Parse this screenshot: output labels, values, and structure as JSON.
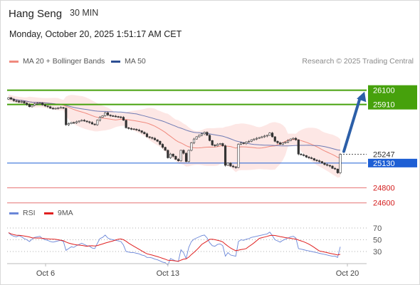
{
  "header": {
    "title": "Hang Seng",
    "interval": "30 MIN",
    "datetime": "Monday, October 20, 2025 1:51:17 AM CET"
  },
  "legend": {
    "ma20_label": "MA 20 + Bollinger Bands",
    "ma50_label": "MA 50",
    "credit": "Research © 2025 Trading Central",
    "rsi_label": "RSI",
    "rsi_ma_label": "9MA"
  },
  "colors": {
    "ma20": "#f08a7e",
    "ma50": "#4a5fa8",
    "bollinger_fill": "#fde3e0",
    "pivot_green": "#46a10c",
    "pivot_blue": "#1e5fd4",
    "support_red": "#e05050",
    "rsi_line": "#6a86d8",
    "rsi_ma": "#e02020",
    "arrow": "#2c5fa8"
  },
  "chart_data": {
    "type": "candlestick",
    "x_tick_labels": [
      "Oct 6",
      "Oct 13",
      "Oct 20"
    ],
    "y_range": [
      24550,
      26400
    ],
    "price_levels": [
      {
        "value": 26100,
        "label": "26100",
        "style": "resistance"
      },
      {
        "value": 25910,
        "label": "25910",
        "style": "pivot"
      },
      {
        "value": 25247,
        "label": "25247",
        "style": "current"
      },
      {
        "value": 25130,
        "label": "25130",
        "style": "support-blue"
      },
      {
        "value": 24800,
        "label": "24800",
        "style": "support-red"
      },
      {
        "value": 24600,
        "label": "24600",
        "style": "support-red"
      }
    ],
    "close_series": [
      26000,
      25980,
      25960,
      25955,
      25940,
      25950,
      25930,
      25910,
      25880,
      25900,
      25920,
      25925,
      25930,
      25905,
      25890,
      25880,
      25860,
      25855,
      25860,
      25865,
      25870,
      25860,
      25640,
      25655,
      25670,
      25665,
      25680,
      25690,
      25700,
      25690,
      25680,
      25670,
      25650,
      25640,
      25700,
      25740,
      25760,
      25800,
      25770,
      25760,
      25755,
      25750,
      25745,
      25740,
      25700,
      25600,
      25590,
      25585,
      25580,
      25570,
      25560,
      25540,
      25520,
      25480,
      25470,
      25460,
      25440,
      25420,
      25380,
      25340,
      25300,
      25200,
      25250,
      25220,
      25180,
      25160,
      25300,
      25260,
      25150,
      25300,
      25400,
      25450,
      25480,
      25500,
      25520,
      25540,
      25500,
      25430,
      25370,
      25360,
      25380,
      25390,
      25360,
      25100,
      25130,
      25090,
      25080,
      25070,
      25380,
      25400,
      25390,
      25410,
      25420,
      25440,
      25450,
      25460,
      25470,
      25480,
      25490,
      25500,
      25530,
      25480,
      25420,
      25400,
      25380,
      25400,
      25410,
      25430,
      25450,
      25460,
      25440,
      25250,
      25240,
      25230,
      25210,
      25200,
      25190,
      25170,
      25160,
      25150,
      25130,
      25110,
      25100,
      25090,
      25060,
      25050,
      25000,
      25247
    ],
    "rsi": {
      "levels": [
        70,
        50,
        30
      ],
      "y_range": [
        0,
        100
      ],
      "values": [
        62,
        58,
        56,
        55,
        57,
        55,
        52,
        50,
        47,
        51,
        54,
        55,
        56,
        52,
        50,
        49,
        47,
        46,
        47,
        48,
        49,
        47,
        32,
        35,
        38,
        37,
        40,
        42,
        44,
        42,
        40,
        39,
        36,
        35,
        44,
        52,
        54,
        58,
        53,
        51,
        50,
        49,
        48,
        47,
        41,
        30,
        29,
        28,
        28,
        27,
        26,
        24,
        23,
        20,
        20,
        19,
        17,
        16,
        14,
        12,
        11,
        7,
        18,
        16,
        14,
        13,
        33,
        28,
        18,
        37,
        47,
        51,
        53,
        55,
        57,
        58,
        53,
        45,
        40,
        39,
        42,
        43,
        40,
        22,
        28,
        24,
        23,
        22,
        47,
        50,
        49,
        51,
        52,
        54,
        55,
        56,
        57,
        58,
        59,
        60,
        63,
        57,
        50,
        48,
        46,
        49,
        51,
        53,
        55,
        56,
        53,
        35,
        34,
        33,
        32,
        31,
        30,
        29,
        28,
        27,
        26,
        25,
        24,
        23,
        22,
        22,
        20,
        38
      ]
    }
  }
}
